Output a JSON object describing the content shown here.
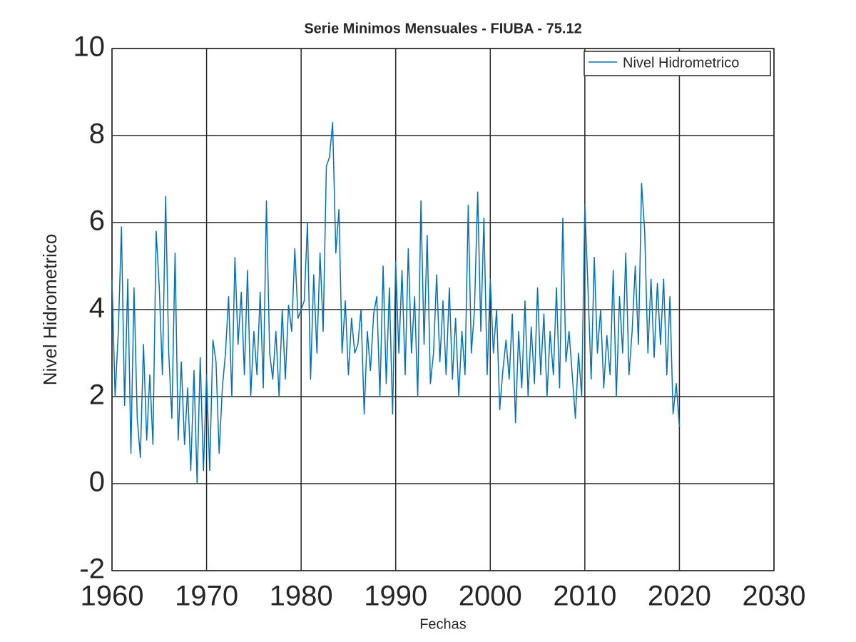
{
  "chart_data": {
    "type": "line",
    "title": "Serie Minimos Mensuales - FIUBA - 75.12",
    "x_label": "Fechas",
    "y_label": "Nivel Hidrometrico",
    "xlim": [
      1960,
      2030
    ],
    "xticks": [
      1960,
      1970,
      1980,
      1990,
      2000,
      2010,
      2020,
      2030
    ],
    "ylim": [
      -2,
      10
    ],
    "yticks": [
      -2,
      0,
      2,
      4,
      6,
      8,
      10
    ],
    "grid": true,
    "legend": "upper-right",
    "x": [
      1960,
      1960.33,
      1960.67,
      1961,
      1961.33,
      1961.67,
      1962,
      1962.33,
      1962.67,
      1963,
      1963.33,
      1963.67,
      1964,
      1964.33,
      1964.67,
      1965,
      1965.33,
      1965.67,
      1966,
      1966.33,
      1966.67,
      1967,
      1967.33,
      1967.67,
      1968,
      1968.33,
      1968.67,
      1969,
      1969.33,
      1969.67,
      1970,
      1970.33,
      1970.67,
      1971,
      1971.33,
      1971.67,
      1972,
      1972.33,
      1972.67,
      1973,
      1973.33,
      1973.67,
      1974,
      1974.33,
      1974.67,
      1975,
      1975.33,
      1975.67,
      1976,
      1976.33,
      1976.67,
      1977,
      1977.33,
      1977.67,
      1978,
      1978.33,
      1978.67,
      1979,
      1979.33,
      1979.67,
      1980,
      1980.33,
      1980.67,
      1981,
      1981.33,
      1981.67,
      1982,
      1982.33,
      1982.67,
      1983,
      1983.33,
      1983.67,
      1984,
      1984.33,
      1984.67,
      1985,
      1985.33,
      1985.67,
      1986,
      1986.33,
      1986.67,
      1987,
      1987.33,
      1987.67,
      1988,
      1988.33,
      1988.67,
      1989,
      1989.33,
      1989.67,
      1990,
      1990.33,
      1990.67,
      1991,
      1991.33,
      1991.67,
      1992,
      1992.33,
      1992.67,
      1993,
      1993.33,
      1993.67,
      1994,
      1994.33,
      1994.67,
      1995,
      1995.33,
      1995.67,
      1996,
      1996.33,
      1996.67,
      1997,
      1997.33,
      1997.67,
      1998,
      1998.33,
      1998.67,
      1999,
      1999.33,
      1999.67,
      2000,
      2000.33,
      2000.67,
      2001,
      2001.33,
      2001.67,
      2002,
      2002.33,
      2002.67,
      2003,
      2003.33,
      2003.67,
      2004,
      2004.33,
      2004.67,
      2005,
      2005.33,
      2005.67,
      2006,
      2006.33,
      2006.67,
      2007,
      2007.33,
      2007.67,
      2008,
      2008.33,
      2008.67,
      2009,
      2009.33,
      2009.67,
      2010,
      2010.33,
      2010.67,
      2011,
      2011.33,
      2011.67,
      2012,
      2012.33,
      2012.67,
      2013,
      2013.33,
      2013.67,
      2014,
      2014.33,
      2014.67,
      2015,
      2015.33,
      2015.67,
      2016,
      2016.33,
      2016.67,
      2017,
      2017.33,
      2017.67,
      2018,
      2018.33,
      2018.67,
      2019,
      2019.33,
      2019.67,
      2020
    ],
    "series": [
      {
        "name": "Nivel Hidrometrico",
        "color": "#0072bd",
        "values": [
          4.7,
          2.0,
          3.5,
          5.9,
          1.8,
          4.7,
          0.7,
          4.5,
          1.5,
          0.6,
          3.2,
          1.0,
          2.5,
          0.9,
          5.8,
          4.5,
          2.5,
          6.6,
          3.0,
          1.5,
          5.3,
          1.0,
          2.8,
          0.9,
          2.2,
          0.3,
          2.6,
          0.0,
          2.9,
          0.3,
          2.5,
          0.3,
          3.3,
          2.8,
          0.7,
          2.2,
          3.0,
          4.3,
          2.0,
          5.2,
          3.2,
          4.4,
          2.5,
          4.9,
          2.0,
          3.5,
          2.5,
          4.4,
          2.2,
          6.5,
          3.0,
          2.4,
          3.5,
          2.0,
          4.0,
          2.4,
          4.1,
          3.5,
          5.4,
          3.8,
          4.0,
          4.2,
          6.0,
          2.4,
          4.8,
          3.0,
          5.3,
          3.5,
          7.3,
          7.5,
          8.3,
          5.3,
          6.3,
          3.0,
          4.2,
          2.5,
          3.8,
          3.0,
          3.2,
          4.0,
          1.6,
          3.5,
          2.6,
          3.9,
          4.3,
          2.0,
          5.0,
          2.3,
          4.5,
          1.6,
          5.1,
          3.0,
          4.9,
          2.5,
          5.4,
          3.0,
          4.3,
          2.0,
          6.5,
          3.2,
          5.7,
          2.3,
          3.0,
          4.8,
          2.8,
          4.2,
          2.5,
          4.5,
          2.4,
          3.8,
          2.0,
          3.5,
          2.5,
          6.4,
          3.0,
          4.0,
          6.7,
          3.5,
          6.1,
          2.5,
          4.7,
          3.0,
          4.0,
          1.7,
          2.6,
          3.3,
          2.4,
          3.9,
          1.4,
          3.5,
          2.2,
          4.2,
          2.0,
          3.6,
          2.3,
          4.5,
          2.5,
          3.9,
          2.0,
          3.5,
          2.5,
          4.5,
          2.2,
          6.1,
          2.8,
          3.5,
          2.5,
          1.5,
          3.0,
          2.0,
          6.4,
          4.5,
          2.4,
          5.2,
          3.0,
          4.0,
          2.2,
          3.4,
          2.5,
          4.9,
          2.0,
          4.3,
          3.0,
          5.3,
          2.5,
          3.5,
          5.0,
          3.2,
          6.9,
          5.8,
          3.0,
          4.7,
          2.9,
          4.6,
          3.2,
          4.7,
          2.5,
          4.3,
          1.6,
          2.3,
          1.3
        ]
      }
    ]
  }
}
